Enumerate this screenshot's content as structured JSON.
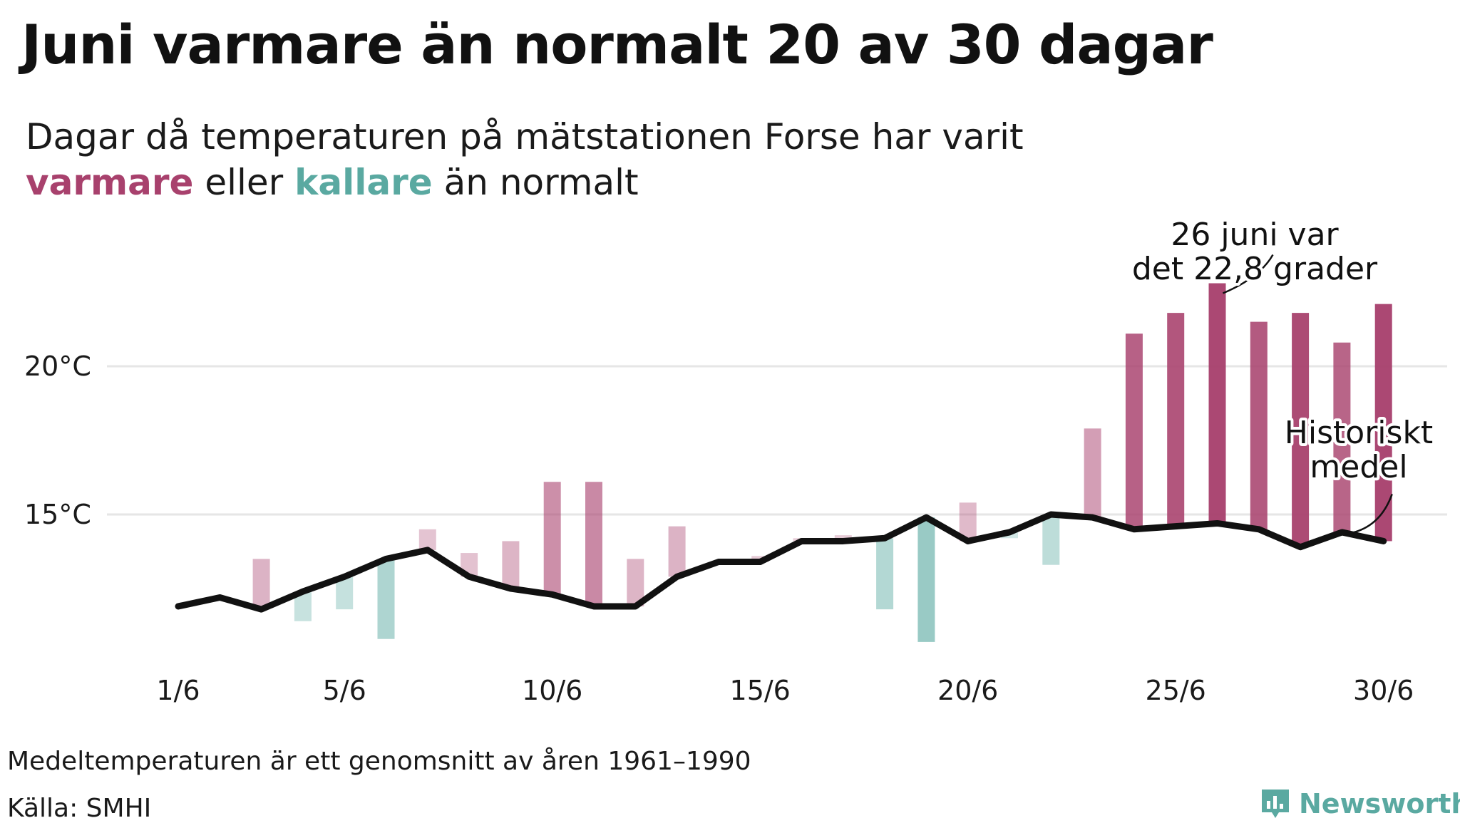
{
  "title": "Juni varmare än normalt 20 av 30 dagar",
  "subtitle": {
    "line1": "Dagar då temperaturen på mätstationen Forse har varit",
    "warm_word": "varmare",
    "mid": "eller",
    "cold_word": "kallare",
    "end": "än normalt"
  },
  "colors": {
    "warm": "#a8416d",
    "cold": "#5aa9a1",
    "line": "#111111",
    "grid": "#e6e6e6"
  },
  "chart_data": {
    "type": "bar",
    "x_ticks": [
      "1/6",
      "5/6",
      "10/6",
      "15/6",
      "20/6",
      "25/6",
      "30/6"
    ],
    "x_tick_days": [
      1,
      5,
      10,
      15,
      20,
      25,
      30
    ],
    "y_ticks": [
      20,
      15
    ],
    "y_tick_labels": [
      "20°C",
      "15°C"
    ],
    "ylim": [
      10,
      24
    ],
    "days": [
      1,
      2,
      3,
      4,
      5,
      6,
      7,
      8,
      9,
      10,
      11,
      12,
      13,
      14,
      15,
      16,
      17,
      18,
      19,
      20,
      21,
      22,
      23,
      24,
      25,
      26,
      27,
      28,
      29,
      30
    ],
    "series": [
      {
        "name": "Historiskt medel",
        "values": [
          11.9,
          12.2,
          11.8,
          12.4,
          12.9,
          13.5,
          13.8,
          12.9,
          12.5,
          12.3,
          11.9,
          11.9,
          12.9,
          13.4,
          13.4,
          14.1,
          14.1,
          14.2,
          14.9,
          14.1,
          14.4,
          15.0,
          14.9,
          14.5,
          14.6,
          14.7,
          14.5,
          13.9,
          14.4,
          14.1
        ]
      },
      {
        "name": "",
        "values": [
          11.9,
          12.2,
          13.5,
          11.4,
          11.8,
          10.8,
          14.5,
          13.7,
          14.1,
          16.1,
          16.1,
          13.5,
          14.6,
          13.3,
          13.6,
          14.2,
          14.3,
          11.8,
          10.7,
          15.4,
          14.2,
          13.3,
          17.9,
          21.1,
          21.8,
          22.8,
          21.5,
          21.8,
          20.8,
          22.1
        ]
      }
    ],
    "annotations": [
      {
        "line1": "26 juni var",
        "line2": "det 22,8 grader",
        "day": 26,
        "value": 22.8
      },
      {
        "line1": "Historiskt",
        "line2": "medel",
        "day": 30,
        "value": 14.1
      }
    ]
  },
  "footnote": "Medeltemperaturen är ett genomsnitt av åren 1961–1990",
  "source": "Källa: SMHI",
  "brand": {
    "name": "Newsworthy",
    "icon": "bar-chart-logo-icon"
  }
}
